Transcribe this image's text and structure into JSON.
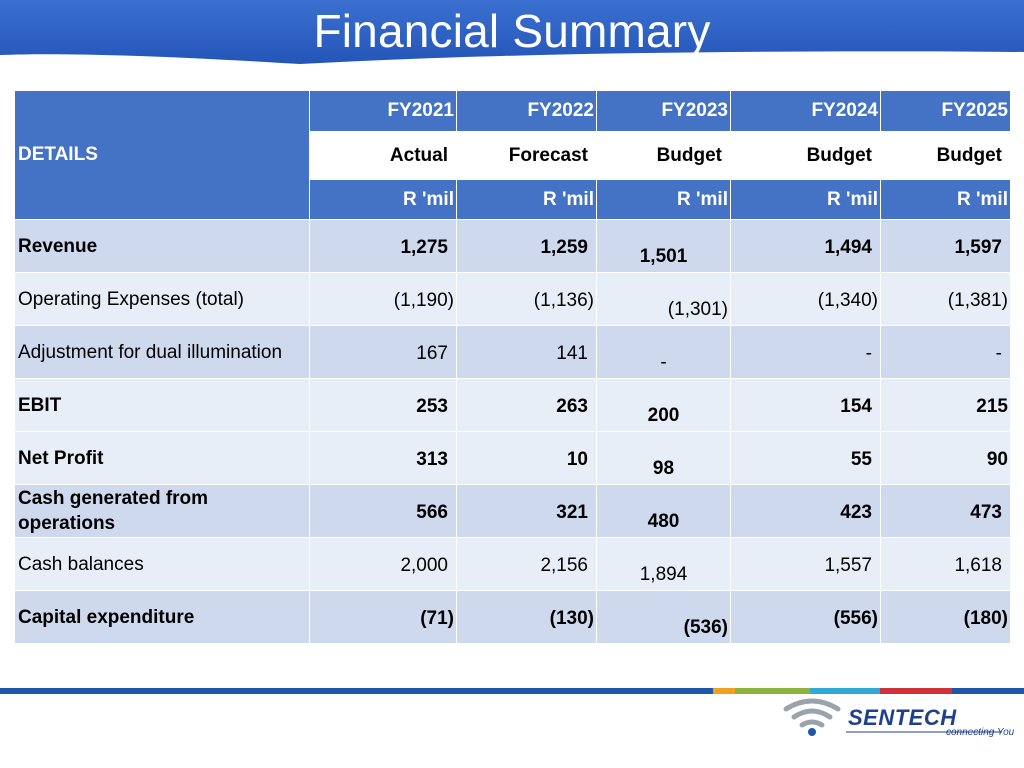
{
  "title": "Financial Summary",
  "header": {
    "details_label": "DETAILS",
    "years": [
      "FY2021",
      "FY2022",
      "FY2023",
      "FY2024",
      "FY2025"
    ],
    "types": [
      "Actual",
      "Forecast",
      "Budget",
      "Budget",
      "Budget"
    ],
    "units": [
      "R 'mil",
      "R 'mil",
      "R 'mil",
      "R 'mil",
      "R 'mil"
    ]
  },
  "rows": [
    {
      "label": "Revenue",
      "values": [
        "1,275",
        "1,259",
        "1,501",
        "1,494",
        "1,597"
      ]
    },
    {
      "label": "Operating Expenses (total)",
      "values": [
        "(1,190)",
        "(1,136)",
        "(1,301)",
        "(1,340)",
        "(1,381)"
      ]
    },
    {
      "label": "Adjustment for dual illumination",
      "values": [
        "167",
        "141",
        "-",
        "-",
        "-"
      ]
    },
    {
      "label": "EBIT",
      "values": [
        "253",
        "263",
        "200",
        "154",
        "215"
      ]
    },
    {
      "label": "Net Profit",
      "values": [
        "313",
        "10",
        "98",
        "55",
        "90"
      ]
    },
    {
      "label": "Cash generated from operations",
      "values": [
        "566",
        "321",
        "480",
        "423",
        "473"
      ]
    },
    {
      "label": "Cash balances",
      "values": [
        "2,000",
        "2,156",
        "1,894",
        "1,557",
        "1,618"
      ]
    },
    {
      "label": "Capital expenditure",
      "values": [
        "(71)",
        "(130)",
        "(536)",
        "(556)",
        "(180)"
      ]
    }
  ],
  "logo": {
    "name": "SENTECH",
    "tagline": "connecting You"
  },
  "colors": {
    "header_blue": "#4472c4",
    "row_dark": "#cfd9ee",
    "row_light": "#e8eef8",
    "stripe_blue": "#1f56a8",
    "stripe_orange": "#f0a020",
    "stripe_green": "#8cb43c",
    "stripe_cyan": "#30a8d8",
    "stripe_red": "#d03038"
  }
}
